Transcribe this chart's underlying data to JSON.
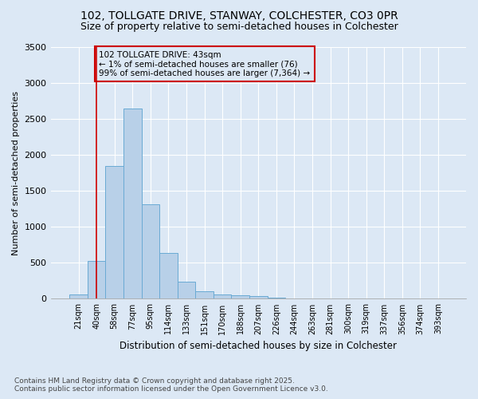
{
  "title_line1": "102, TOLLGATE DRIVE, STANWAY, COLCHESTER, CO3 0PR",
  "title_line2": "Size of property relative to semi-detached houses in Colchester",
  "xlabel": "Distribution of semi-detached houses by size in Colchester",
  "ylabel": "Number of semi-detached properties",
  "footnote": "Contains HM Land Registry data © Crown copyright and database right 2025.\nContains public sector information licensed under the Open Government Licence v3.0.",
  "bar_labels": [
    "21sqm",
    "40sqm",
    "58sqm",
    "77sqm",
    "95sqm",
    "114sqm",
    "133sqm",
    "151sqm",
    "170sqm",
    "188sqm",
    "207sqm",
    "226sqm",
    "244sqm",
    "263sqm",
    "281sqm",
    "300sqm",
    "319sqm",
    "337sqm",
    "356sqm",
    "374sqm",
    "393sqm"
  ],
  "bar_values": [
    65,
    530,
    1850,
    2650,
    1310,
    640,
    240,
    105,
    60,
    50,
    35,
    20,
    10,
    0,
    0,
    0,
    0,
    0,
    0,
    0,
    0
  ],
  "bar_color": "#b8d0e8",
  "bar_edgecolor": "#6aaad4",
  "vline_x_bar": 1,
  "vline_color": "#cc0000",
  "annotation_text": "102 TOLLGATE DRIVE: 43sqm\n← 1% of semi-detached houses are smaller (76)\n99% of semi-detached houses are larger (7,364) →",
  "annotation_box_edgecolor": "#cc0000",
  "ylim": [
    0,
    3500
  ],
  "yticks": [
    0,
    500,
    1000,
    1500,
    2000,
    2500,
    3000,
    3500
  ],
  "bg_color": "#dce8f5",
  "grid_color": "white",
  "title_fontsize": 10,
  "subtitle_fontsize": 9,
  "footnote_fontsize": 6.5
}
